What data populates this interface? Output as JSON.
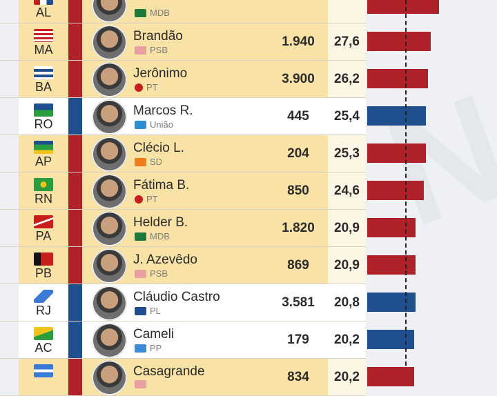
{
  "colors": {
    "left": "#b0222a",
    "right": "#1f4f8f",
    "highlight": "#f9e2a5"
  },
  "rows": [
    {
      "uf": "AL",
      "name": "",
      "party": "MDB",
      "party_logo": "mdb-logo",
      "votes": "",
      "pct": "",
      "pct_value": 31.0,
      "side": "red"
    },
    {
      "uf": "MA",
      "name": "Brandão",
      "party": "PSB",
      "party_logo": "psb-logo",
      "votes": "1.940",
      "pct": "27,6",
      "pct_value": 27.6,
      "side": "red"
    },
    {
      "uf": "BA",
      "name": "Jerônimo",
      "party": "PT",
      "party_logo": "pt-star",
      "votes": "3.900",
      "pct": "26,2",
      "pct_value": 26.2,
      "side": "red"
    },
    {
      "uf": "RO",
      "name": "Marcos R.",
      "party": "União",
      "party_logo": "uniao-logo",
      "votes": "445",
      "pct": "25,4",
      "pct_value": 25.4,
      "side": "blue"
    },
    {
      "uf": "AP",
      "name": "Clécio L.",
      "party": "SD",
      "party_logo": "sd-logo",
      "votes": "204",
      "pct": "25,3",
      "pct_value": 25.3,
      "side": "red"
    },
    {
      "uf": "RN",
      "name": "Fátima B.",
      "party": "PT",
      "party_logo": "pt-star",
      "votes": "850",
      "pct": "24,6",
      "pct_value": 24.6,
      "side": "red"
    },
    {
      "uf": "PA",
      "name": "Helder B.",
      "party": "MDB",
      "party_logo": "mdb-logo",
      "votes": "1.820",
      "pct": "20,9",
      "pct_value": 20.9,
      "side": "red"
    },
    {
      "uf": "PB",
      "name": "J. Azevêdo",
      "party": "PSB",
      "party_logo": "psb-logo",
      "votes": "869",
      "pct": "20,9",
      "pct_value": 20.9,
      "side": "red"
    },
    {
      "uf": "RJ",
      "name": "Cláudio Castro",
      "party": "PL",
      "party_logo": "pl-logo",
      "votes": "3.581",
      "pct": "20,8",
      "pct_value": 20.8,
      "side": "blue"
    },
    {
      "uf": "AC",
      "name": "Cameli",
      "party": "PP",
      "party_logo": "pp-logo",
      "votes": "179",
      "pct": "20,2",
      "pct_value": 20.2,
      "side": "blue"
    },
    {
      "uf": "",
      "name": "Casagrande",
      "party": "",
      "party_logo": "psb-logo",
      "votes": "834",
      "pct": "20,2",
      "pct_value": 20.2,
      "side": "red"
    }
  ]
}
